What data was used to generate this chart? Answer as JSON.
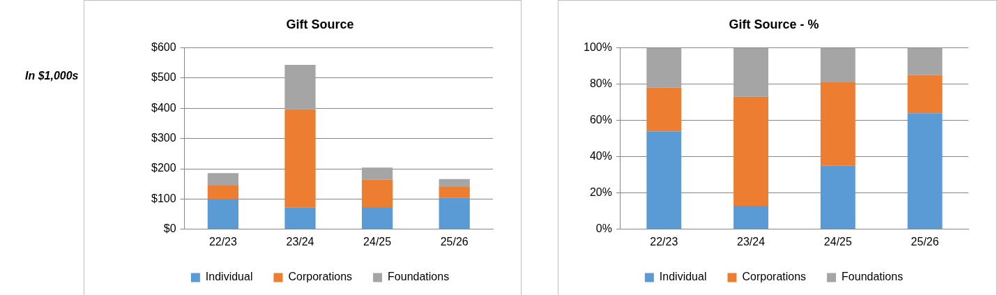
{
  "chart_data": [
    {
      "type": "bar",
      "title": "Gift Source",
      "annotations": [
        "In $1,000s"
      ],
      "categories": [
        "22/23",
        "23/24",
        "24/25",
        "25/26"
      ],
      "stacked": true,
      "grid": "y",
      "legend": "bottom",
      "ylim": [
        0,
        600
      ],
      "yticks": [
        {
          "value": 0,
          "label": "$0"
        },
        {
          "value": 100,
          "label": "$100"
        },
        {
          "value": 200,
          "label": "$200"
        },
        {
          "value": 300,
          "label": "$300"
        },
        {
          "value": 400,
          "label": "$400"
        },
        {
          "value": 500,
          "label": "$500"
        },
        {
          "value": 600,
          "label": "$600"
        }
      ],
      "series": [
        {
          "name": "Individual",
          "color": "#5b9bd5",
          "values": [
            100,
            73,
            71,
            105
          ]
        },
        {
          "name": "Corporations",
          "color": "#ed7d31",
          "values": [
            45,
            324,
            93,
            35
          ]
        },
        {
          "name": "Foundations",
          "color": "#a5a5a5",
          "values": [
            41,
            147,
            40,
            26
          ]
        }
      ]
    },
    {
      "type": "bar",
      "title": "Gift Source - %",
      "categories": [
        "22/23",
        "23/24",
        "24/25",
        "25/26"
      ],
      "stacked": true,
      "grid": "y",
      "legend": "bottom",
      "ylim": [
        0,
        100
      ],
      "yticks": [
        {
          "value": 0,
          "label": "0%"
        },
        {
          "value": 20,
          "label": "20%"
        },
        {
          "value": 40,
          "label": "40%"
        },
        {
          "value": 60,
          "label": "60%"
        },
        {
          "value": 80,
          "label": "80%"
        },
        {
          "value": 100,
          "label": "100%"
        }
      ],
      "series": [
        {
          "name": "Individual",
          "color": "#5b9bd5",
          "values": [
            54,
            13,
            35,
            64
          ]
        },
        {
          "name": "Corporations",
          "color": "#ed7d31",
          "values": [
            24,
            60,
            46,
            21
          ]
        },
        {
          "name": "Foundations",
          "color": "#a5a5a5",
          "values": [
            22,
            27,
            19,
            15
          ]
        }
      ]
    }
  ]
}
